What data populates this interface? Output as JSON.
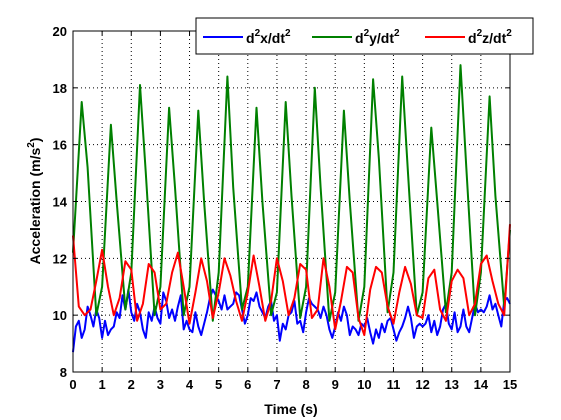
{
  "chart_data": {
    "type": "line",
    "xlabel": "Time (s)",
    "ylabel": "Acceleration (m/s",
    "ylabel_sup": "2",
    "ylabel_tail": ")",
    "xlim": [
      0,
      15
    ],
    "ylim": [
      8,
      20
    ],
    "xticks": [
      "0",
      "1",
      "2",
      "3",
      "4",
      "5",
      "6",
      "7",
      "8",
      "9",
      "10",
      "11",
      "12",
      "13",
      "14",
      "15"
    ],
    "yticks": [
      "8",
      "10",
      "12",
      "14",
      "16",
      "18",
      "20"
    ],
    "grid": true,
    "grid_style": "dotted",
    "legend_position": "top-right",
    "series": [
      {
        "legend_pre": "d",
        "legend_sup": "2",
        "legend_post": "x/dt",
        "legend_sup2": "2",
        "color": "#0000ff",
        "x": [
          0,
          0.1,
          0.2,
          0.3,
          0.4,
          0.5,
          0.6,
          0.7,
          0.8,
          0.9,
          1.0,
          1.1,
          1.2,
          1.3,
          1.4,
          1.5,
          1.6,
          1.7,
          1.8,
          1.9,
          2.0,
          2.1,
          2.2,
          2.3,
          2.4,
          2.5,
          2.6,
          2.7,
          2.8,
          2.9,
          3.0,
          3.1,
          3.2,
          3.3,
          3.4,
          3.5,
          3.6,
          3.7,
          3.8,
          3.9,
          4.0,
          4.1,
          4.2,
          4.3,
          4.4,
          4.5,
          4.6,
          4.7,
          4.8,
          4.9,
          5.0,
          5.1,
          5.2,
          5.3,
          5.4,
          5.5,
          5.6,
          5.7,
          5.8,
          5.9,
          6.0,
          6.1,
          6.2,
          6.3,
          6.4,
          6.5,
          6.6,
          6.7,
          6.8,
          6.9,
          7.0,
          7.1,
          7.2,
          7.3,
          7.4,
          7.5,
          7.6,
          7.7,
          7.8,
          7.9,
          8.0,
          8.1,
          8.2,
          8.3,
          8.4,
          8.5,
          8.6,
          8.7,
          8.8,
          8.9,
          9.0,
          9.1,
          9.2,
          9.3,
          9.4,
          9.5,
          9.6,
          9.7,
          9.8,
          9.9,
          10.0,
          10.1,
          10.2,
          10.3,
          10.4,
          10.5,
          10.6,
          10.7,
          10.8,
          10.9,
          11.0,
          11.1,
          11.2,
          11.3,
          11.4,
          11.5,
          11.6,
          11.7,
          11.8,
          11.9,
          12.0,
          12.1,
          12.2,
          12.3,
          12.4,
          12.5,
          12.6,
          12.7,
          12.8,
          12.9,
          13.0,
          13.1,
          13.2,
          13.3,
          13.4,
          13.5,
          13.6,
          13.7,
          13.8,
          13.9,
          14.0,
          14.1,
          14.2,
          14.3,
          14.4,
          14.5,
          14.6,
          14.7,
          14.8,
          14.9,
          15.0
        ],
        "y": [
          8.7,
          9.6,
          9.8,
          9.2,
          9.5,
          10.3,
          10.0,
          9.6,
          10.2,
          9.9,
          9.2,
          9.8,
          9.3,
          9.5,
          9.6,
          10.1,
          9.9,
          10.7,
          10.2,
          10.9,
          10.1,
          9.8,
          10.4,
          10.1,
          9.5,
          9.2,
          10.1,
          9.8,
          10.3,
          9.9,
          9.7,
          10.8,
          10.5,
          9.9,
          10.2,
          9.8,
          10.3,
          10.7,
          9.5,
          9.8,
          9.5,
          9.4,
          10.1,
          9.6,
          9.3,
          9.7,
          10.1,
          10.6,
          10.9,
          10.7,
          10.5,
          10.2,
          10.7,
          10.2,
          10.3,
          10.4,
          10.8,
          10.7,
          10.2,
          9.7,
          10.0,
          10.6,
          10.5,
          10.8,
          10.3,
          10.1,
          9.9,
          10.3,
          10.5,
          9.8,
          10.0,
          9.1,
          9.7,
          9.5,
          10.0,
          10.1,
          10.5,
          9.7,
          9.8,
          9.4,
          10.1,
          10.6,
          10.4,
          10.3,
          10.2,
          9.9,
          10.3,
          10.0,
          9.5,
          9.2,
          9.6,
          10.1,
          9.8,
          10.3,
          10.0,
          9.3,
          9.6,
          9.5,
          9.3,
          9.7,
          9.6,
          9.9,
          9.4,
          9.0,
          9.5,
          9.2,
          9.7,
          9.4,
          9.8,
          9.9,
          9.5,
          9.1,
          9.4,
          9.6,
          9.9,
          10.3,
          9.9,
          9.2,
          9.6,
          9.7,
          9.6,
          9.7,
          10.0,
          9.4,
          9.8,
          9.3,
          9.6,
          10.2,
          10.4,
          9.7,
          9.5,
          10.1,
          9.4,
          9.6,
          10.2,
          9.6,
          9.4,
          9.9,
          10.4,
          10.1,
          10.2,
          10.1,
          10.3,
          10.7,
          10.2,
          10.4,
          10.0,
          9.6,
          10.5,
          10.6,
          10.4
        ]
      },
      {
        "legend_pre": "d",
        "legend_sup": "2",
        "legend_post": "y/dt",
        "legend_sup2": "2",
        "color": "#008000",
        "x": [
          0,
          0.3,
          0.5,
          0.8,
          1.0,
          1.3,
          1.5,
          1.8,
          2.0,
          2.3,
          2.5,
          2.8,
          3.0,
          3.3,
          3.5,
          3.8,
          4.0,
          4.3,
          4.5,
          4.8,
          5.0,
          5.3,
          5.5,
          5.8,
          6.0,
          6.3,
          6.5,
          6.8,
          7.0,
          7.3,
          7.5,
          7.8,
          8.0,
          8.3,
          8.5,
          8.8,
          9.0,
          9.3,
          9.5,
          9.8,
          10.0,
          10.3,
          10.5,
          10.8,
          11.0,
          11.3,
          11.5,
          11.8,
          12.0,
          12.3,
          12.5,
          12.8,
          13.0,
          13.3,
          13.5,
          13.8,
          14.0,
          14.3,
          14.5,
          14.8,
          15.0
        ],
        "y": [
          12.2,
          17.5,
          15.2,
          10.0,
          11.0,
          16.7,
          14.0,
          10.2,
          11.5,
          18.1,
          15.0,
          10.0,
          11.0,
          17.3,
          14.5,
          10.0,
          11.0,
          17.2,
          14.0,
          9.8,
          11.5,
          18.4,
          14.5,
          10.2,
          11.0,
          17.3,
          14.0,
          10.0,
          10.8,
          17.5,
          14.2,
          9.9,
          11.0,
          18.0,
          14.5,
          9.8,
          10.8,
          17.2,
          14.0,
          9.8,
          11.0,
          18.3,
          15.5,
          10.1,
          11.5,
          18.4,
          15.0,
          10.0,
          10.8,
          16.6,
          14.0,
          10.1,
          11.5,
          18.8,
          15.2,
          10.0,
          11.5,
          17.7,
          14.2,
          10.3,
          13.0
        ]
      },
      {
        "legend_pre": "d",
        "legend_sup": "2",
        "legend_post": "z/dt",
        "legend_sup2": "2",
        "color": "#ff0000",
        "x": [
          0,
          0.2,
          0.4,
          0.6,
          0.8,
          1.0,
          1.2,
          1.4,
          1.6,
          1.8,
          2.0,
          2.2,
          2.4,
          2.6,
          2.8,
          3.0,
          3.2,
          3.4,
          3.6,
          3.8,
          4.0,
          4.2,
          4.4,
          4.6,
          4.8,
          5.0,
          5.2,
          5.4,
          5.6,
          5.8,
          6.0,
          6.2,
          6.4,
          6.6,
          6.8,
          7.0,
          7.2,
          7.4,
          7.6,
          7.8,
          8.0,
          8.2,
          8.4,
          8.6,
          8.8,
          9.0,
          9.2,
          9.4,
          9.6,
          9.8,
          10.0,
          10.2,
          10.4,
          10.6,
          10.8,
          11.0,
          11.2,
          11.4,
          11.6,
          11.8,
          12.0,
          12.2,
          12.4,
          12.6,
          12.8,
          13.0,
          13.2,
          13.4,
          13.6,
          13.8,
          14.0,
          14.2,
          14.4,
          14.6,
          14.8,
          15.0
        ],
        "y": [
          12.8,
          10.3,
          10.0,
          10.2,
          11.2,
          12.3,
          11.0,
          10.0,
          10.6,
          11.9,
          11.6,
          9.8,
          10.4,
          11.8,
          11.5,
          10.2,
          10.4,
          11.5,
          12.2,
          11.0,
          9.7,
          10.8,
          12.0,
          11.2,
          9.9,
          10.8,
          12.0,
          11.4,
          10.5,
          9.8,
          10.8,
          12.1,
          11.0,
          9.8,
          10.5,
          12.0,
          11.2,
          10.0,
          10.6,
          11.8,
          11.6,
          9.9,
          10.2,
          12.0,
          11.0,
          9.5,
          10.5,
          11.7,
          11.5,
          9.9,
          9.3,
          10.9,
          11.7,
          11.5,
          10.3,
          9.7,
          10.8,
          11.7,
          11.1,
          10.0,
          9.9,
          11.3,
          11.6,
          10.2,
          9.8,
          11.2,
          11.6,
          11.3,
          10.0,
          10.4,
          11.8,
          12.1,
          11.2,
          10.4,
          10.0,
          13.2
        ]
      }
    ]
  }
}
